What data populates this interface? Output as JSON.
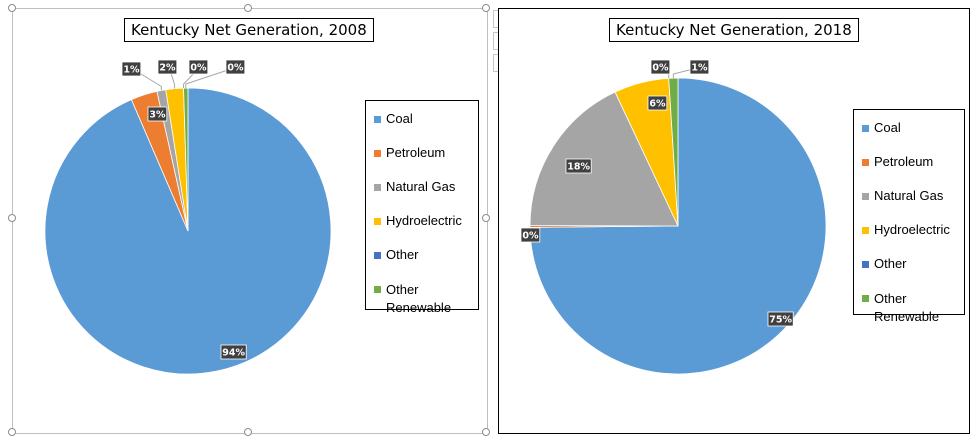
{
  "tools": {
    "add_icon": "plus-icon",
    "style_icon": "brush-icon",
    "filter_icon": "filter-icon"
  },
  "colors": {
    "Coal": "#5b9bd5",
    "Petroleum": "#ed7d31",
    "Natural Gas": "#a5a5a5",
    "Hydroelectric": "#ffc000",
    "Other": "#4472c4",
    "Other Renewable": "#70ad47"
  },
  "chart_data": [
    {
      "type": "pie",
      "title": "Kentucky Net Generation, 2008",
      "categories": [
        "Coal",
        "Petroleum",
        "Natural Gas",
        "Hydroelectric",
        "Other",
        "Other Renewable"
      ],
      "values": [
        94,
        3,
        1,
        2,
        0,
        0.5
      ],
      "labels": [
        "94%",
        "3%",
        "1%",
        "2%",
        "0%",
        "0%"
      ],
      "legend": [
        "Coal",
        "Petroleum",
        "Natural Gas",
        "Hydroelectric",
        "Other",
        "Other Renewable"
      ],
      "legend_position": "right"
    },
    {
      "type": "pie",
      "title": "Kentucky Net Generation, 2018",
      "categories": [
        "Coal",
        "Petroleum",
        "Natural Gas",
        "Hydroelectric",
        "Other",
        "Other Renewable"
      ],
      "values": [
        75,
        0.2,
        18,
        6,
        0,
        1
      ],
      "labels": [
        "75%",
        "0%",
        "18%",
        "6%",
        "0%",
        "1%"
      ],
      "legend": [
        "Coal",
        "Petroleum",
        "Natural Gas",
        "Hydroelectric",
        "Other",
        "Other Renewable"
      ],
      "legend_position": "right"
    }
  ]
}
